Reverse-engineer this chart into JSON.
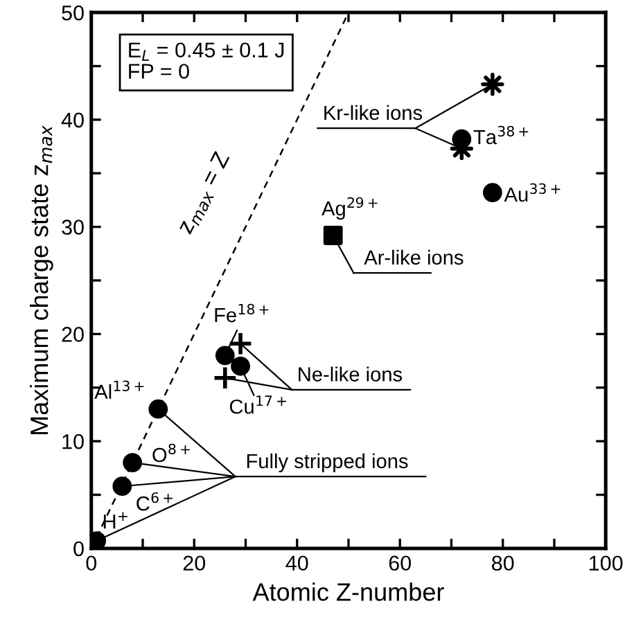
{
  "chart_data": {
    "type": "scatter",
    "xlabel": "Atomic Z-number",
    "ylabel": "Maximum charge state z$_{max}$",
    "xlim": [
      0,
      100
    ],
    "ylim": [
      0,
      50
    ],
    "xticks": [
      0,
      {
        "value": 10,
        "label": null
      },
      20,
      {
        "value": 30,
        "label": null
      },
      40,
      {
        "value": 50,
        "label": null
      },
      60,
      {
        "value": 70,
        "label": null
      },
      80,
      {
        "value": 90,
        "label": null
      },
      100
    ],
    "yticks": [
      0,
      {
        "value": 5,
        "label": null
      },
      10,
      {
        "value": 15,
        "label": null
      },
      20,
      {
        "value": 25,
        "label": null
      },
      30,
      {
        "value": 35,
        "label": null
      },
      40,
      {
        "value": 45,
        "label": null
      },
      50
    ],
    "grid": false,
    "legend": false,
    "series": [
      {
        "marker": "circle",
        "color": "#000000",
        "x": [
          1,
          6,
          8,
          13,
          26,
          29,
          72,
          78
        ],
        "values": [
          0.7,
          5.8,
          8,
          13,
          18,
          17,
          38.2,
          33.2
        ]
      },
      {
        "marker": "square",
        "color": "#000000",
        "x": [
          47
        ],
        "values": [
          29.2
        ]
      },
      {
        "marker": "cross",
        "color": "#000000",
        "x": [
          29,
          26
        ],
        "values": [
          19.1,
          15.9
        ]
      },
      {
        "marker": "star",
        "color": "#000000",
        "x": [
          78,
          72
        ],
        "values": [
          43.3,
          37.3
        ]
      },
      {
        "type": "line",
        "marker": "none",
        "line_style": "dashed",
        "color": "#000000",
        "x": [
          0,
          50
        ],
        "values": [
          0,
          50
        ]
      }
    ],
    "annotations": [
      "E$_{L}$ = 0.45 ± 0.1 J\nFP = 0",
      "z$_{max}$ = Z",
      {
        "text": "H$^{+}$",
        "x": 1,
        "y": 0.7
      },
      {
        "text": "C$^{6+}$",
        "x": 6,
        "y": 5.8
      },
      {
        "text": "O$^{8+}$",
        "x": 8,
        "y": 8
      },
      {
        "text": "Al$^{13+}$",
        "x": 13,
        "y": 13
      },
      {
        "text": "Fe$^{18+}$",
        "x": 26,
        "y": 18
      },
      {
        "text": "Cu$^{17+}$",
        "x": 29,
        "y": 17
      },
      {
        "text": "Ag$^{29+}$",
        "x": 47,
        "y": 29.2
      },
      {
        "text": "Ta$^{38+}$",
        "x": 72,
        "y": 38.2
      },
      {
        "text": "Au$^{33+}$",
        "x": 78,
        "y": 33.2
      },
      {
        "text": "Fully stripped ions",
        "x": 13,
        "y": 13
      },
      {
        "text": "Ne-like ions",
        "x": 29,
        "y": 19.1
      },
      {
        "text": "Ar-like ions",
        "x": 47,
        "y": 29.2
      },
      {
        "text": "Kr-like ions",
        "x": 78,
        "y": 43.3
      }
    ]
  }
}
